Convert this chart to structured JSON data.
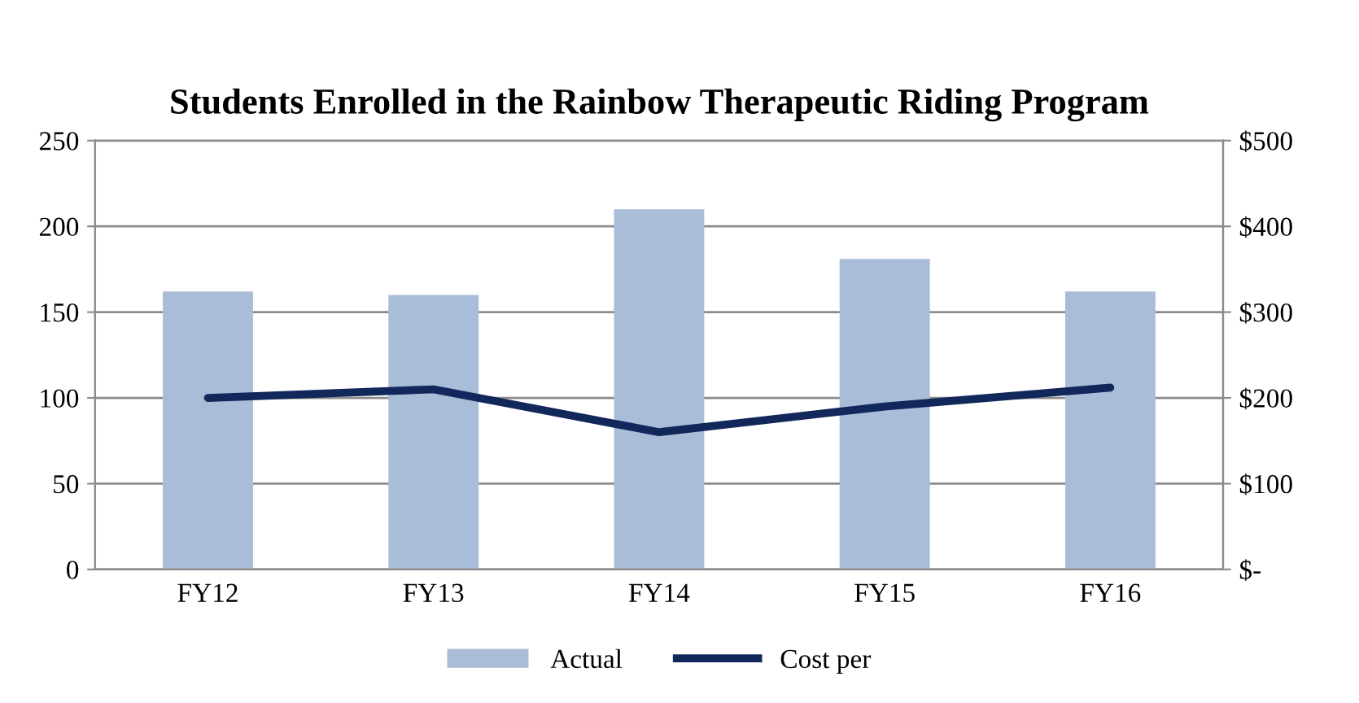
{
  "chart_data": {
    "type": "bar",
    "title": "Students Enrolled in the Rainbow Therapeutic Riding Program",
    "categories": [
      "FY12",
      "FY13",
      "FY14",
      "FY15",
      "FY16"
    ],
    "series": [
      {
        "name": "Actual",
        "color": "#a9bcd8",
        "values": [
          162,
          160,
          210,
          181,
          162
        ]
      },
      {
        "name": "Cost per",
        "type": "line",
        "axis": "y2",
        "color": "#12275a",
        "values": [
          200,
          210,
          160,
          190,
          212
        ]
      }
    ],
    "ylim": [
      0,
      250
    ],
    "yticks": [
      0,
      50,
      100,
      150,
      200,
      250
    ],
    "y2lim": [
      0,
      500
    ],
    "y2ticks": [
      {
        "value": 0,
        "label": "$-"
      },
      {
        "value": 100,
        "label": "$100"
      },
      {
        "value": 200,
        "label": "$200"
      },
      {
        "value": 300,
        "label": "$300"
      },
      {
        "value": 400,
        "label": "$400"
      },
      {
        "value": 500,
        "label": "$500"
      }
    ],
    "grid": "y",
    "legend": "bottom",
    "marker": "none"
  }
}
